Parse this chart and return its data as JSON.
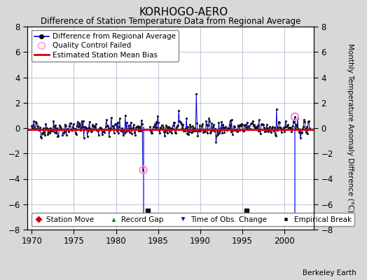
{
  "title": "KORHOGO-AERO",
  "subtitle": "Difference of Station Temperature Data from Regional Average",
  "ylabel": "Monthly Temperature Anomaly Difference (°C)",
  "xlim": [
    1969.5,
    2003.5
  ],
  "ylim": [
    -8,
    8
  ],
  "yticks": [
    -8,
    -6,
    -4,
    -2,
    0,
    2,
    4,
    6,
    8
  ],
  "xticks": [
    1970,
    1975,
    1980,
    1985,
    1990,
    1995,
    2000
  ],
  "background_color": "#d8d8d8",
  "plot_bg_color": "#ffffff",
  "line_color": "#0000cc",
  "bias_line_color": "#dd0000",
  "bias_value": -0.1,
  "time_of_obs_change_years": [
    1983.25,
    2001.25
  ],
  "empirical_break_years": [
    1983.75,
    1995.5
  ],
  "qc_times": [
    1983.25,
    2001.25
  ],
  "qc_vals": [
    -3.3,
    0.9
  ],
  "vline_bottom": -7.3,
  "seed": 42,
  "n_points": 396,
  "start_year": 1970.0,
  "end_year": 2003.0
}
